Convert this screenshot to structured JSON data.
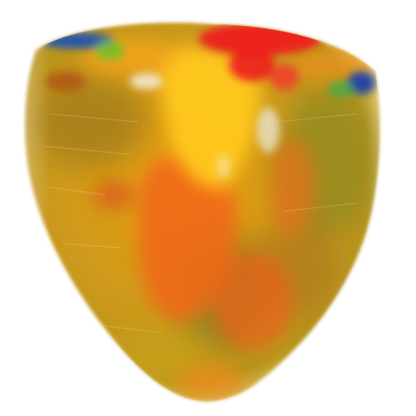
{
  "scene": {
    "subject": "heart-ventricle-model",
    "background_color": "#ffffff",
    "colormap": {
      "low": "#1a3fa8",
      "low_mid": "#3fb24a",
      "mid": "#d8b31a",
      "high_mid": "#f07a12",
      "high": "#ee1c1c"
    },
    "surface_colors": {
      "base": "#d4a018",
      "shadow": "#8f6a10",
      "olive": "#9a8a1c",
      "highlight": "#ffd24a",
      "cavity": "#f3eedc"
    }
  }
}
